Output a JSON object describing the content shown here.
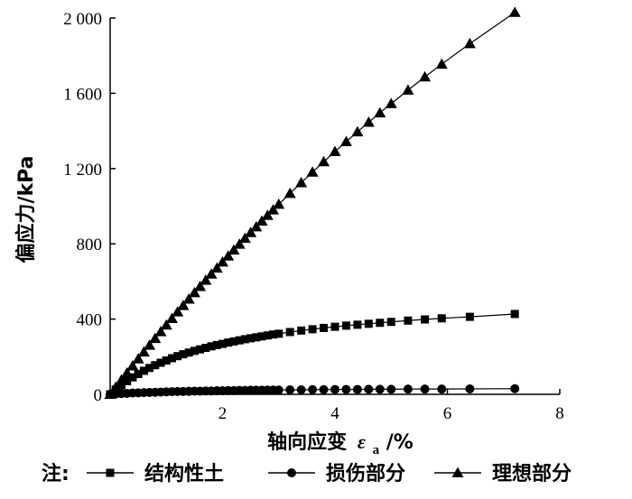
{
  "chart_data": {
    "type": "line",
    "xlabel_prefix": "轴向应变",
    "xlabel_symbol": "ε",
    "xlabel_subscript": "a",
    "xlabel_suffix": "/%",
    "ylabel": "偏应力/kPa",
    "xlim": [
      0,
      8
    ],
    "ylim": [
      0,
      2000
    ],
    "x_ticks": [
      2,
      4,
      6,
      8
    ],
    "x_tick_labels": [
      "2",
      "4",
      "6",
      "8"
    ],
    "y_ticks": [
      0,
      400,
      800,
      1200,
      1600,
      2000
    ],
    "y_tick_labels": [
      "0",
      "400",
      "800",
      "1 200",
      "1 600",
      "2 000"
    ],
    "grid": false,
    "legend_position": "bottom",
    "legend_prefix": "注:",
    "series": [
      {
        "name": "结构性土",
        "marker": "square",
        "x": [
          0.0,
          0.1,
          0.2,
          0.3,
          0.4,
          0.5,
          0.6,
          0.7,
          0.8,
          0.9,
          1.0,
          1.1,
          1.2,
          1.3,
          1.4,
          1.5,
          1.6,
          1.7,
          1.8,
          1.9,
          2.0,
          2.1,
          2.2,
          2.3,
          2.4,
          2.5,
          2.6,
          2.7,
          2.8,
          2.9,
          3.0,
          3.2,
          3.4,
          3.6,
          3.8,
          4.0,
          4.2,
          4.4,
          4.6,
          4.8,
          5.0,
          5.3,
          5.6,
          5.9,
          6.4,
          7.2
        ],
        "y": [
          0,
          25,
          48,
          70,
          90,
          108,
          125,
          140,
          155,
          168,
          180,
          192,
          203,
          213,
          222,
          231,
          239,
          247,
          255,
          262,
          268,
          275,
          281,
          287,
          293,
          298,
          303,
          308,
          313,
          318,
          322,
          331,
          339,
          346,
          353,
          359,
          365,
          370,
          375,
          380,
          385,
          392,
          398,
          404,
          412,
          427
        ]
      },
      {
        "name": "损伤部分",
        "marker": "circle",
        "x": [
          0.0,
          0.1,
          0.2,
          0.3,
          0.4,
          0.5,
          0.6,
          0.7,
          0.8,
          0.9,
          1.0,
          1.1,
          1.2,
          1.3,
          1.4,
          1.5,
          1.6,
          1.7,
          1.8,
          1.9,
          2.0,
          2.1,
          2.2,
          2.3,
          2.4,
          2.5,
          2.6,
          2.7,
          2.8,
          2.9,
          3.0,
          3.2,
          3.4,
          3.6,
          3.8,
          4.0,
          4.2,
          4.4,
          4.6,
          4.8,
          5.0,
          5.3,
          5.6,
          5.9,
          6.4,
          7.2
        ],
        "y": [
          0,
          2,
          4,
          5,
          7,
          8,
          9,
          10,
          11,
          12,
          13,
          14,
          15,
          15,
          16,
          17,
          17,
          18,
          18,
          19,
          19,
          20,
          20,
          21,
          21,
          22,
          22,
          22,
          23,
          23,
          23,
          24,
          24,
          25,
          25,
          26,
          26,
          26,
          27,
          27,
          27,
          28,
          28,
          28,
          29,
          30
        ]
      },
      {
        "name": "理想部分",
        "marker": "triangle",
        "x": [
          0.0,
          0.1,
          0.2,
          0.3,
          0.4,
          0.5,
          0.6,
          0.7,
          0.8,
          0.9,
          1.0,
          1.1,
          1.2,
          1.3,
          1.4,
          1.5,
          1.6,
          1.7,
          1.8,
          1.9,
          2.0,
          2.1,
          2.2,
          2.3,
          2.4,
          2.5,
          2.6,
          2.7,
          2.8,
          2.9,
          3.0,
          3.2,
          3.4,
          3.6,
          3.8,
          4.0,
          4.2,
          4.4,
          4.6,
          4.8,
          5.0,
          5.3,
          5.6,
          5.9,
          6.4,
          7.2
        ],
        "y": [
          0,
          38,
          76,
          114,
          151,
          188,
          225,
          261,
          297,
          333,
          368,
          403,
          438,
          472,
          506,
          540,
          573,
          606,
          639,
          671,
          703,
          735,
          767,
          798,
          829,
          860,
          890,
          921,
          951,
          980,
          1010,
          1068,
          1125,
          1181,
          1236,
          1290,
          1343,
          1395,
          1446,
          1496,
          1545,
          1617,
          1687,
          1755,
          1864,
          2030
        ]
      }
    ]
  }
}
